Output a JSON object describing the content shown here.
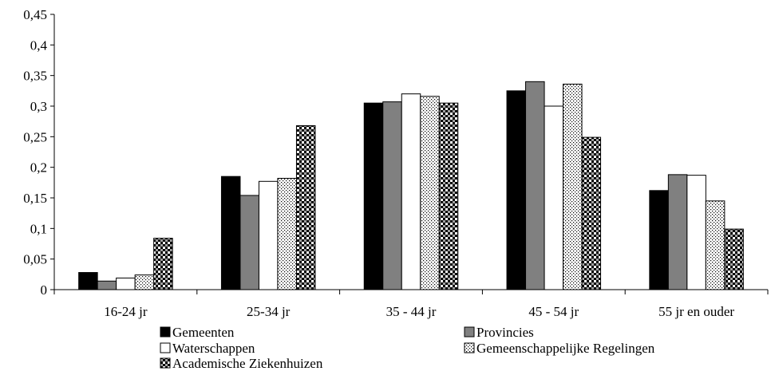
{
  "chart_data": {
    "type": "bar",
    "title": "",
    "xlabel": "",
    "ylabel": "",
    "ylim": [
      0,
      0.45
    ],
    "yticks": [
      "0",
      "0,05",
      "0,1",
      "0,15",
      "0,2",
      "0,25",
      "0,3",
      "0,35",
      "0,4",
      "0,45"
    ],
    "categories": [
      "16-24 jr",
      "25-34 jr",
      "35 - 44 jr",
      "45 - 54 jr",
      "55 jr en ouder"
    ],
    "grid": false,
    "legend_position": "bottom",
    "series": [
      {
        "name": "Gemeenten",
        "pattern": "solid-black",
        "color": "#000000",
        "values": [
          0.028,
          0.185,
          0.305,
          0.325,
          0.162
        ]
      },
      {
        "name": "Provincies",
        "pattern": "solid-gray",
        "color": "#808080",
        "values": [
          0.014,
          0.154,
          0.307,
          0.34,
          0.188
        ]
      },
      {
        "name": "Waterschappen",
        "pattern": "solid-white",
        "color": "#ffffff",
        "values": [
          0.019,
          0.177,
          0.32,
          0.3,
          0.187
        ]
      },
      {
        "name": "Gemeenschappelijke Regelingen",
        "pattern": "dotted",
        "color": "#ffffff",
        "values": [
          0.024,
          0.182,
          0.316,
          0.336,
          0.145
        ]
      },
      {
        "name": "Academische Ziekenhuizen",
        "pattern": "checkered",
        "color": "#000000",
        "values": [
          0.084,
          0.268,
          0.305,
          0.249,
          0.099
        ]
      }
    ]
  }
}
